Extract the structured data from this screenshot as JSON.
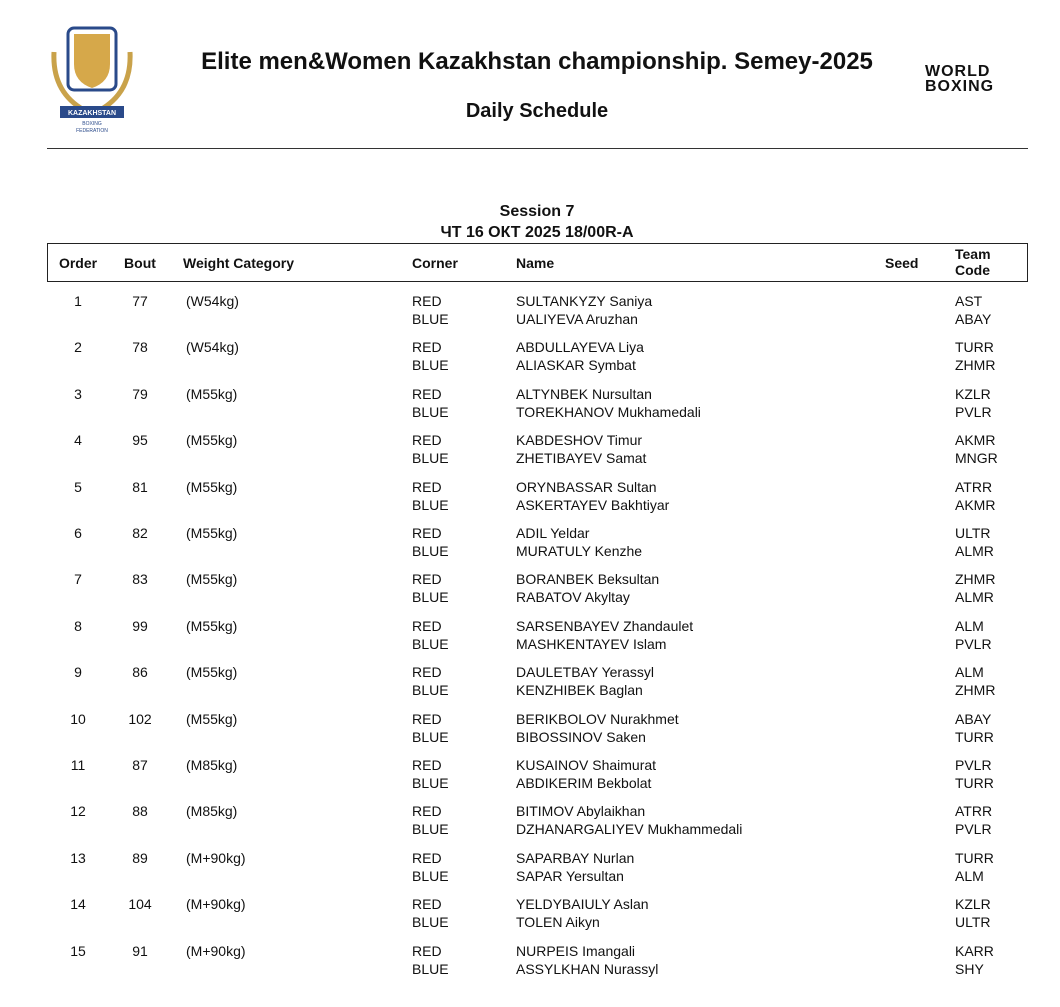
{
  "header": {
    "title": "Elite men&Women Kazakhstan championship. Semey-2025",
    "subtitle": "Daily Schedule",
    "logo_left": [
      "KAZAKHSTAN",
      "BOXING",
      "FEDERATION"
    ],
    "logo_right": [
      "WORLD",
      "BOXING"
    ]
  },
  "session": {
    "title": "Session 7",
    "date": "ЧТ 16 ОКТ 2025  18/00R-A"
  },
  "table": {
    "columns": [
      "Order",
      "Bout",
      "Weight Category",
      "Corner",
      "Name",
      "Seed",
      "Team Code"
    ],
    "rows": [
      {
        "order": "1",
        "bout": "77",
        "weight": "(W54kg)",
        "red": {
          "corner": "RED",
          "name": "SULTANKYZY Saniya",
          "team": "AST"
        },
        "blue": {
          "corner": "BLUE",
          "name": "UALIYEVA Aruzhan",
          "team": "ABAY"
        }
      },
      {
        "order": "2",
        "bout": "78",
        "weight": "(W54kg)",
        "red": {
          "corner": "RED",
          "name": "ABDULLAYEVA Liya",
          "team": "TURR"
        },
        "blue": {
          "corner": "BLUE",
          "name": "ALIASKAR Symbat",
          "team": "ZHMR"
        }
      },
      {
        "order": "3",
        "bout": "79",
        "weight": "(M55kg)",
        "red": {
          "corner": "RED",
          "name": "ALTYNBEK Nursultan",
          "team": "KZLR"
        },
        "blue": {
          "corner": "BLUE",
          "name": "TOREKHANOV Mukhamedali",
          "team": "PVLR"
        }
      },
      {
        "order": "4",
        "bout": "95",
        "weight": "(M55kg)",
        "red": {
          "corner": "RED",
          "name": "KABDESHOV Timur",
          "team": "AKMR"
        },
        "blue": {
          "corner": "BLUE",
          "name": "ZHETIBAYEV Samat",
          "team": "MNGR"
        }
      },
      {
        "order": "5",
        "bout": "81",
        "weight": "(M55kg)",
        "red": {
          "corner": "RED",
          "name": "ORYNBASSAR Sultan",
          "team": "ATRR"
        },
        "blue": {
          "corner": "BLUE",
          "name": "ASKERTAYEV Bakhtiyar",
          "team": "AKMR"
        }
      },
      {
        "order": "6",
        "bout": "82",
        "weight": "(M55kg)",
        "red": {
          "corner": "RED",
          "name": "ADIL Yeldar",
          "team": "ULTR"
        },
        "blue": {
          "corner": "BLUE",
          "name": "MURATULY Kenzhe",
          "team": "ALMR"
        }
      },
      {
        "order": "7",
        "bout": "83",
        "weight": "(M55kg)",
        "red": {
          "corner": "RED",
          "name": "BORANBEK Beksultan",
          "team": "ZHMR"
        },
        "blue": {
          "corner": "BLUE",
          "name": "RABATOV Akyltay",
          "team": "ALMR"
        }
      },
      {
        "order": "8",
        "bout": "99",
        "weight": "(M55kg)",
        "red": {
          "corner": "RED",
          "name": "SARSENBAYEV Zhandaulet",
          "team": "ALM"
        },
        "blue": {
          "corner": "BLUE",
          "name": "MASHKENTAYEV Islam",
          "team": "PVLR"
        }
      },
      {
        "order": "9",
        "bout": "86",
        "weight": "(M55kg)",
        "red": {
          "corner": "RED",
          "name": "DAULETBAY Yerassyl",
          "team": "ALM"
        },
        "blue": {
          "corner": "BLUE",
          "name": "KENZHIBEK Baglan",
          "team": "ZHMR"
        }
      },
      {
        "order": "10",
        "bout": "102",
        "weight": "(M55kg)",
        "red": {
          "corner": "RED",
          "name": "BERIKBOLOV Nurakhmet",
          "team": "ABAY"
        },
        "blue": {
          "corner": "BLUE",
          "name": "BIBOSSINOV Saken",
          "team": "TURR"
        }
      },
      {
        "order": "11",
        "bout": "87",
        "weight": "(M85kg)",
        "red": {
          "corner": "RED",
          "name": "KUSAINOV Shaimurat",
          "team": "PVLR"
        },
        "blue": {
          "corner": "BLUE",
          "name": "ABDIKERIM Bekbolat",
          "team": "TURR"
        }
      },
      {
        "order": "12",
        "bout": "88",
        "weight": "(M85kg)",
        "red": {
          "corner": "RED",
          "name": "BITIMOV Abylaikhan",
          "team": "ATRR"
        },
        "blue": {
          "corner": "BLUE",
          "name": "DZHANARGALIYEV Mukhammedali",
          "team": "PVLR"
        }
      },
      {
        "order": "13",
        "bout": "89",
        "weight": "(M+90kg)",
        "red": {
          "corner": "RED",
          "name": "SAPARBAY Nurlan",
          "team": "TURR"
        },
        "blue": {
          "corner": "BLUE",
          "name": "SAPAR Yersultan",
          "team": "ALM"
        }
      },
      {
        "order": "14",
        "bout": "104",
        "weight": "(M+90kg)",
        "red": {
          "corner": "RED",
          "name": "YELDYBAIULY Aslan",
          "team": "KZLR"
        },
        "blue": {
          "corner": "BLUE",
          "name": "TOLEN Aikyn",
          "team": "ULTR"
        }
      },
      {
        "order": "15",
        "bout": "91",
        "weight": "(M+90kg)",
        "red": {
          "corner": "RED",
          "name": "NURPEIS Imangali",
          "team": "KARR"
        },
        "blue": {
          "corner": "BLUE",
          "name": "ASSYLKHAN Nurassyl",
          "team": "SHY"
        }
      }
    ]
  }
}
